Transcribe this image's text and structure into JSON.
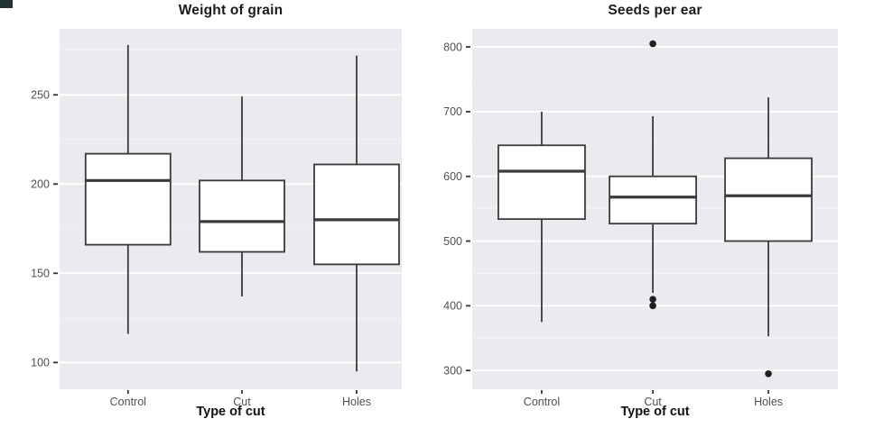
{
  "page": {
    "background": "#ffffff"
  },
  "style": {
    "panel_bg": "#e9ebee",
    "grid_major": "#ffffff",
    "grid_minor": "#f3f4f6",
    "box_fill": "#ffffff",
    "box_stroke": "#3a3a3a",
    "outlier_color": "#1f1f1f",
    "tick_label_color": "#4f4f4f",
    "axis_tick_color": "#333333",
    "title_color": "#1b1b1b",
    "corner_artifact_color": "#213331"
  },
  "chart_data": [
    {
      "type": "boxplot",
      "title": "Weight of grain",
      "xlabel": "Type of cut",
      "ylabel": "",
      "categories": [
        "Control",
        "Cut",
        "Holes"
      ],
      "ylim": [
        85,
        287
      ],
      "yticks": [
        100,
        150,
        200,
        250
      ],
      "grid": "horizontal major + minor, white on grey panel",
      "legend": "none",
      "series": [
        {
          "category": "Control",
          "whisker_low": 116,
          "q1": 166,
          "median": 202,
          "q3": 217,
          "whisker_high": 278,
          "outliers": []
        },
        {
          "category": "Cut",
          "whisker_low": 137,
          "q1": 162,
          "median": 179,
          "q3": 202,
          "whisker_high": 249,
          "outliers": []
        },
        {
          "category": "Holes",
          "whisker_low": 95,
          "q1": 155,
          "median": 180,
          "q3": 211,
          "whisker_high": 272,
          "outliers": []
        }
      ]
    },
    {
      "type": "boxplot",
      "title": "Seeds per ear",
      "xlabel": "Type of cut",
      "ylabel": "",
      "categories": [
        "Control",
        "Cut",
        "Holes"
      ],
      "ylim": [
        271,
        828
      ],
      "yticks": [
        300,
        400,
        500,
        600,
        700,
        800
      ],
      "grid": "horizontal major + minor, white on grey panel",
      "legend": "none",
      "series": [
        {
          "category": "Control",
          "whisker_low": 375,
          "q1": 534,
          "median": 608,
          "q3": 648,
          "whisker_high": 700,
          "outliers": []
        },
        {
          "category": "Cut",
          "whisker_low": 420,
          "q1": 527,
          "median": 568,
          "q3": 600,
          "whisker_high": 693,
          "outliers": [
            805,
            410,
            400
          ]
        },
        {
          "category": "Holes",
          "whisker_low": 353,
          "q1": 500,
          "median": 570,
          "q3": 628,
          "whisker_high": 722,
          "outliers": [
            295
          ]
        }
      ]
    }
  ]
}
